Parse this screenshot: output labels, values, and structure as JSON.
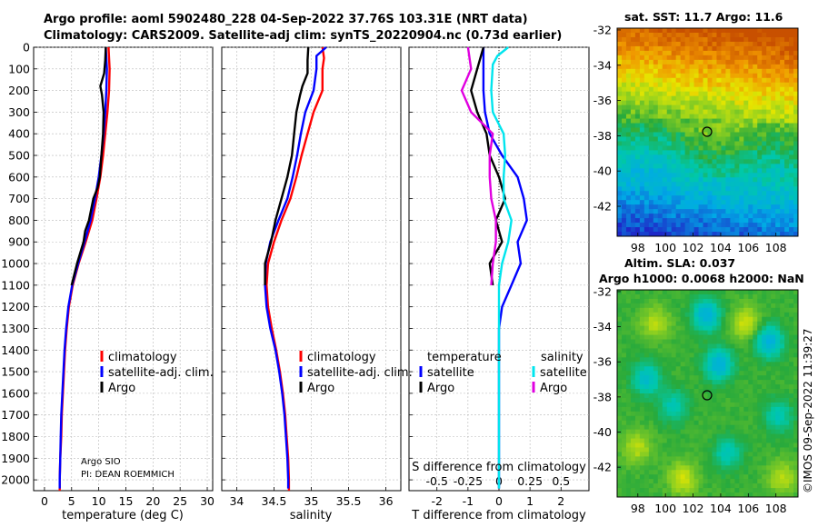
{
  "header": {
    "line1": "Argo profile: aoml 5902480_228 04-Sep-2022 37.76S 103.31E (NRT data)",
    "line2": "Climatology: CARS2009. Satellite-adj clim: synTS_20220904.nc (0.73d earlier)"
  },
  "colors": {
    "climatology": "#ff0000",
    "satellite": "#0000ff",
    "argo": "#000000",
    "sal_satellite": "#00e5ee",
    "sal_argo": "#e000e0",
    "grid": "#b8b8b8"
  },
  "annotations": {
    "argo_sio": "Argo SIO",
    "pi": "PI: DEAN ROEMMICH",
    "credit": "©IMOS 09-Sep-2022 11:39:27"
  },
  "maps": {
    "sst_title": "sat. SST: 11.7 Argo: 11.6",
    "sla_title1": "Altim. SLA: 0.037",
    "sla_title2": "Argo h1000: 0.0068 h2000: NaN",
    "lat_ticks": [
      "-32",
      "-34",
      "-36",
      "-38",
      "-40",
      "-42"
    ],
    "lon_ticks": [
      "98",
      "100",
      "102",
      "104",
      "106",
      "108"
    ],
    "float_lon": 103.31,
    "float_lat": -37.76
  },
  "chart_data": [
    {
      "type": "line",
      "panel": "temperature",
      "xlabel": "temperature (deg C)",
      "ylabel": "",
      "xlim": [
        -2,
        31
      ],
      "ylim": [
        2050,
        0
      ],
      "xticks": [
        "0",
        "5",
        "10",
        "15",
        "20",
        "25",
        "30"
      ],
      "yticks": [
        "0",
        "100",
        "200",
        "300",
        "400",
        "500",
        "600",
        "700",
        "800",
        "900",
        "1000",
        "1100",
        "1200",
        "1300",
        "1400",
        "1500",
        "1600",
        "1700",
        "1800",
        "1900",
        "2000"
      ],
      "grid": true,
      "legend": [
        {
          "label": "climatology",
          "color": "#ff0000"
        },
        {
          "label": "satellite-adj. clim.",
          "color": "#0000ff"
        },
        {
          "label": "Argo",
          "color": "#000000"
        }
      ],
      "series": [
        {
          "name": "climatology",
          "color": "#ff0000",
          "points": [
            [
              11.8,
              0
            ],
            [
              11.9,
              50
            ],
            [
              12.0,
              100
            ],
            [
              11.9,
              200
            ],
            [
              11.6,
              300
            ],
            [
              11.2,
              400
            ],
            [
              10.8,
              500
            ],
            [
              10.3,
              600
            ],
            [
              9.6,
              700
            ],
            [
              8.8,
              800
            ],
            [
              7.6,
              900
            ],
            [
              6.3,
              1000
            ],
            [
              5.2,
              1100
            ],
            [
              4.5,
              1200
            ],
            [
              4.1,
              1300
            ],
            [
              3.8,
              1400
            ],
            [
              3.6,
              1500
            ],
            [
              3.4,
              1600
            ],
            [
              3.2,
              1700
            ],
            [
              3.1,
              1800
            ],
            [
              2.9,
              1900
            ],
            [
              2.8,
              2000
            ],
            [
              2.8,
              2050
            ]
          ]
        },
        {
          "name": "satellite-adj. clim.",
          "color": "#0000ff",
          "points": [
            [
              11.3,
              0
            ],
            [
              11.4,
              50
            ],
            [
              11.5,
              100
            ],
            [
              11.4,
              200
            ],
            [
              11.2,
              300
            ],
            [
              10.9,
              400
            ],
            [
              10.5,
              500
            ],
            [
              10.0,
              600
            ],
            [
              9.3,
              700
            ],
            [
              8.5,
              800
            ],
            [
              7.4,
              900
            ],
            [
              6.2,
              1000
            ],
            [
              5.1,
              1100
            ],
            [
              4.4,
              1200
            ],
            [
              4.0,
              1300
            ],
            [
              3.7,
              1400
            ],
            [
              3.5,
              1500
            ],
            [
              3.3,
              1600
            ],
            [
              3.1,
              1700
            ],
            [
              3.0,
              1800
            ],
            [
              2.9,
              1900
            ],
            [
              2.8,
              2000
            ],
            [
              2.8,
              2040
            ]
          ]
        },
        {
          "name": "Argo",
          "color": "#000000",
          "points": [
            [
              11.3,
              0
            ],
            [
              11.2,
              60
            ],
            [
              11.0,
              120
            ],
            [
              10.3,
              180
            ],
            [
              10.6,
              220
            ],
            [
              10.9,
              300
            ],
            [
              10.8,
              400
            ],
            [
              10.5,
              500
            ],
            [
              10.2,
              600
            ],
            [
              9.8,
              650
            ],
            [
              9.0,
              700
            ],
            [
              8.2,
              800
            ],
            [
              7.5,
              850
            ],
            [
              7.2,
              900
            ],
            [
              6.0,
              1000
            ],
            [
              5.0,
              1100
            ]
          ]
        }
      ]
    },
    {
      "type": "line",
      "panel": "salinity",
      "xlabel": "salinity",
      "ylabel": "",
      "xlim": [
        33.8,
        36.2
      ],
      "ylim": [
        2050,
        0
      ],
      "xticks": [
        "34",
        "34.5",
        "35",
        "35.5",
        "36"
      ],
      "grid": true,
      "legend": [
        {
          "label": "climatology",
          "color": "#ff0000"
        },
        {
          "label": "satellite-adj. clim.",
          "color": "#0000ff"
        },
        {
          "label": "Argo",
          "color": "#000000"
        }
      ],
      "series": [
        {
          "name": "climatology",
          "color": "#ff0000",
          "points": [
            [
              35.15,
              0
            ],
            [
              35.17,
              50
            ],
            [
              35.15,
              100
            ],
            [
              35.15,
              200
            ],
            [
              35.03,
              300
            ],
            [
              34.95,
              400
            ],
            [
              34.87,
              500
            ],
            [
              34.8,
              600
            ],
            [
              34.72,
              700
            ],
            [
              34.6,
              800
            ],
            [
              34.5,
              900
            ],
            [
              34.42,
              1000
            ],
            [
              34.4,
              1100
            ],
            [
              34.42,
              1200
            ],
            [
              34.47,
              1300
            ],
            [
              34.53,
              1400
            ],
            [
              34.58,
              1500
            ],
            [
              34.62,
              1600
            ],
            [
              34.65,
              1700
            ],
            [
              34.67,
              1800
            ],
            [
              34.69,
              1900
            ],
            [
              34.7,
              2000
            ],
            [
              34.7,
              2050
            ]
          ]
        },
        {
          "name": "satellite-adj. clim.",
          "color": "#0000ff",
          "points": [
            [
              35.2,
              0
            ],
            [
              35.07,
              40
            ],
            [
              35.07,
              100
            ],
            [
              35.03,
              200
            ],
            [
              34.92,
              300
            ],
            [
              34.86,
              400
            ],
            [
              34.81,
              500
            ],
            [
              34.75,
              600
            ],
            [
              34.68,
              700
            ],
            [
              34.56,
              800
            ],
            [
              34.45,
              900
            ],
            [
              34.39,
              1000
            ],
            [
              34.38,
              1100
            ],
            [
              34.4,
              1200
            ],
            [
              34.45,
              1300
            ],
            [
              34.52,
              1400
            ],
            [
              34.57,
              1500
            ],
            [
              34.61,
              1600
            ],
            [
              34.64,
              1700
            ],
            [
              34.66,
              1800
            ],
            [
              34.68,
              1900
            ],
            [
              34.69,
              2000
            ],
            [
              34.69,
              2040
            ]
          ]
        },
        {
          "name": "Argo",
          "color": "#000000",
          "points": [
            [
              34.96,
              0
            ],
            [
              34.95,
              60
            ],
            [
              34.95,
              120
            ],
            [
              34.88,
              180
            ],
            [
              34.85,
              220
            ],
            [
              34.8,
              300
            ],
            [
              34.77,
              400
            ],
            [
              34.74,
              500
            ],
            [
              34.68,
              600
            ],
            [
              34.6,
              700
            ],
            [
              34.52,
              800
            ],
            [
              34.46,
              900
            ],
            [
              34.38,
              1000
            ],
            [
              34.38,
              1100
            ]
          ]
        }
      ]
    },
    {
      "type": "line",
      "panel": "difference",
      "xlabel": "T difference from climatology",
      "xlabel2": "S difference from climatology",
      "ylabel": "",
      "xlim": [
        -2.9,
        2.9
      ],
      "ylim": [
        2050,
        0
      ],
      "xticks": [
        "-2",
        "-1",
        "0",
        "1",
        "2"
      ],
      "xticks2": [
        "-0.5",
        "-0.25",
        "0",
        "0.25",
        "0.5"
      ],
      "grid": true,
      "legend_headers": [
        "temperature",
        "salinity"
      ],
      "legend": [
        {
          "label": "satellite",
          "color": "#0000ff"
        },
        {
          "label": "Argo",
          "color": "#000000"
        },
        {
          "label": "satellite",
          "color": "#00e5ee"
        },
        {
          "label": "Argo",
          "color": "#e000e0"
        }
      ],
      "series": [
        {
          "name": "satellite",
          "color": "#0000ff",
          "points": [
            [
              -0.5,
              0
            ],
            [
              -0.5,
              100
            ],
            [
              -0.5,
              200
            ],
            [
              -0.45,
              300
            ],
            [
              -0.3,
              400
            ],
            [
              0.1,
              500
            ],
            [
              0.6,
              600
            ],
            [
              0.8,
              700
            ],
            [
              0.9,
              800
            ],
            [
              0.6,
              900
            ],
            [
              0.7,
              1000
            ],
            [
              0.4,
              1100
            ],
            [
              0.1,
              1200
            ],
            [
              0.0,
              1300
            ],
            [
              0.0,
              2000
            ],
            [
              0.0,
              2040
            ]
          ]
        },
        {
          "name": "Argo",
          "color": "#000000",
          "points": [
            [
              -0.5,
              0
            ],
            [
              -0.7,
              100
            ],
            [
              -0.9,
              200
            ],
            [
              -0.7,
              300
            ],
            [
              -0.4,
              400
            ],
            [
              -0.3,
              500
            ],
            [
              0.0,
              600
            ],
            [
              0.2,
              700
            ],
            [
              -0.1,
              800
            ],
            [
              0.1,
              900
            ],
            [
              -0.3,
              1000
            ],
            [
              -0.2,
              1100
            ]
          ]
        },
        {
          "name": "satellite",
          "color": "#00e5ee",
          "points": [
            [
              0.3,
              0
            ],
            [
              -0.05,
              40
            ],
            [
              -0.2,
              80
            ],
            [
              -0.25,
              200
            ],
            [
              -0.2,
              300
            ],
            [
              0.15,
              400
            ],
            [
              0.2,
              500
            ],
            [
              0.15,
              600
            ],
            [
              0.15,
              700
            ],
            [
              0.4,
              800
            ],
            [
              0.3,
              900
            ],
            [
              0.1,
              1000
            ],
            [
              0.0,
              1100
            ],
            [
              0.0,
              1300
            ],
            [
              0.0,
              1600
            ],
            [
              0.0,
              2000
            ],
            [
              0.0,
              2040
            ]
          ]
        },
        {
          "name": "Argo",
          "color": "#e000e0",
          "points": [
            [
              -1.0,
              0
            ],
            [
              -0.9,
              100
            ],
            [
              -1.2,
              200
            ],
            [
              -0.9,
              300
            ],
            [
              -0.2,
              400
            ],
            [
              -0.3,
              500
            ],
            [
              -0.3,
              600
            ],
            [
              -0.25,
              700
            ],
            [
              -0.1,
              800
            ],
            [
              -0.1,
              900
            ],
            [
              -0.2,
              1000
            ],
            [
              -0.25,
              1100
            ]
          ]
        }
      ]
    }
  ]
}
